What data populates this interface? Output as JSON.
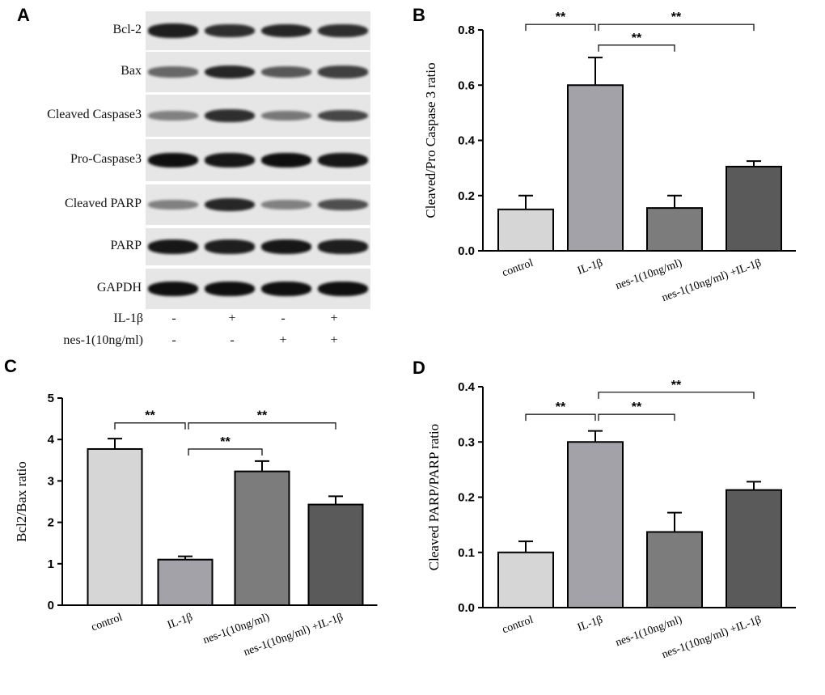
{
  "panel_letters": {
    "a": "A",
    "b": "B",
    "c": "C",
    "d": "D"
  },
  "blot": {
    "rows": [
      {
        "label": "Bcl-2",
        "intensity": [
          0.9,
          0.8,
          0.85,
          0.8
        ]
      },
      {
        "label": "Bax",
        "intensity": [
          0.45,
          0.85,
          0.55,
          0.7
        ]
      },
      {
        "label": "Cleaved Caspase3",
        "intensity": [
          0.3,
          0.8,
          0.35,
          0.65
        ]
      },
      {
        "label": "Pro-Caspase3",
        "intensity": [
          1.0,
          0.95,
          1.0,
          0.95
        ]
      },
      {
        "label": "Cleaved PARP",
        "intensity": [
          0.3,
          0.85,
          0.3,
          0.6
        ]
      },
      {
        "label": "PARP",
        "intensity": [
          0.95,
          0.9,
          0.95,
          0.9
        ]
      },
      {
        "label": "GAPDH",
        "intensity": [
          1.0,
          1.0,
          1.0,
          1.0
        ]
      }
    ],
    "treatments": [
      {
        "label": "IL-1β",
        "signs": [
          "-",
          "+",
          "-",
          "+"
        ]
      },
      {
        "label": "nes-1(10ng/ml)",
        "signs": [
          "-",
          "-",
          "+",
          "+"
        ]
      }
    ],
    "band_color": "#0f0f0f",
    "background_color": "#e6e6e6"
  },
  "chart_data": [
    {
      "panel": "B",
      "type": "bar",
      "categories": [
        "control",
        "IL-1β",
        "nes-1(10ng/ml)",
        "nes-1(10ng/ml) +IL-1β"
      ],
      "values": [
        0.15,
        0.6,
        0.155,
        0.305
      ],
      "errors": [
        0.05,
        0.1,
        0.045,
        0.02
      ],
      "colors": [
        "#d6d6d6",
        "#a2a2a8",
        "#7c7c7c",
        "#5a5a5a"
      ],
      "ylabel": "Cleaved/Pro Caspase 3 ratio",
      "ylim": [
        0,
        0.8
      ],
      "yticks": [
        0.0,
        0.2,
        0.4,
        0.6,
        0.8
      ],
      "ytick_labels": [
        "0.0",
        "0.2",
        "0.4",
        "0.6",
        "0.8"
      ],
      "significance": [
        {
          "from": 0,
          "to": 1,
          "label": "**",
          "level": 0.82
        },
        {
          "from": 1,
          "to": 3,
          "label": "**",
          "level": 0.82
        },
        {
          "from": 1,
          "to": 2,
          "label": "**",
          "level": 0.745
        }
      ]
    },
    {
      "panel": "C",
      "type": "bar",
      "categories": [
        "control",
        "IL-1β",
        "nes-1(10ng/ml)",
        "nes-1(10ng/ml) +IL-1β"
      ],
      "values": [
        3.77,
        1.1,
        3.23,
        2.43
      ],
      "errors": [
        0.25,
        0.08,
        0.25,
        0.2
      ],
      "colors": [
        "#d6d6d6",
        "#a2a2a8",
        "#7c7c7c",
        "#5a5a5a"
      ],
      "ylabel": "Bcl2/Bax ratio",
      "ylim": [
        0,
        5
      ],
      "yticks": [
        0,
        1,
        2,
        3,
        4,
        5
      ],
      "ytick_labels": [
        "0",
        "1",
        "2",
        "3",
        "4",
        "5"
      ],
      "significance": [
        {
          "from": 0,
          "to": 1,
          "label": "**",
          "level": 4.4
        },
        {
          "from": 1,
          "to": 3,
          "label": "**",
          "level": 4.4
        },
        {
          "from": 1,
          "to": 2,
          "label": "**",
          "level": 3.77
        }
      ]
    },
    {
      "panel": "D",
      "type": "bar",
      "categories": [
        "control",
        "IL-1β",
        "nes-1(10ng/ml)",
        "nes-1(10ng/ml) +IL-1β"
      ],
      "values": [
        0.1,
        0.3,
        0.137,
        0.213
      ],
      "errors": [
        0.02,
        0.02,
        0.035,
        0.015
      ],
      "colors": [
        "#d6d6d6",
        "#a2a2a8",
        "#7c7c7c",
        "#5a5a5a"
      ],
      "ylabel": "Cleaved PARP/PARP ratio",
      "ylim": [
        0,
        0.4
      ],
      "yticks": [
        0.0,
        0.1,
        0.2,
        0.3,
        0.4
      ],
      "ytick_labels": [
        "0.0",
        "0.1",
        "0.2",
        "0.3",
        "0.4"
      ],
      "significance": [
        {
          "from": 0,
          "to": 1,
          "label": "**",
          "level": 0.35
        },
        {
          "from": 1,
          "to": 3,
          "label": "**",
          "level": 0.39
        },
        {
          "from": 1,
          "to": 2,
          "label": "**",
          "level": 0.35
        }
      ]
    }
  ]
}
